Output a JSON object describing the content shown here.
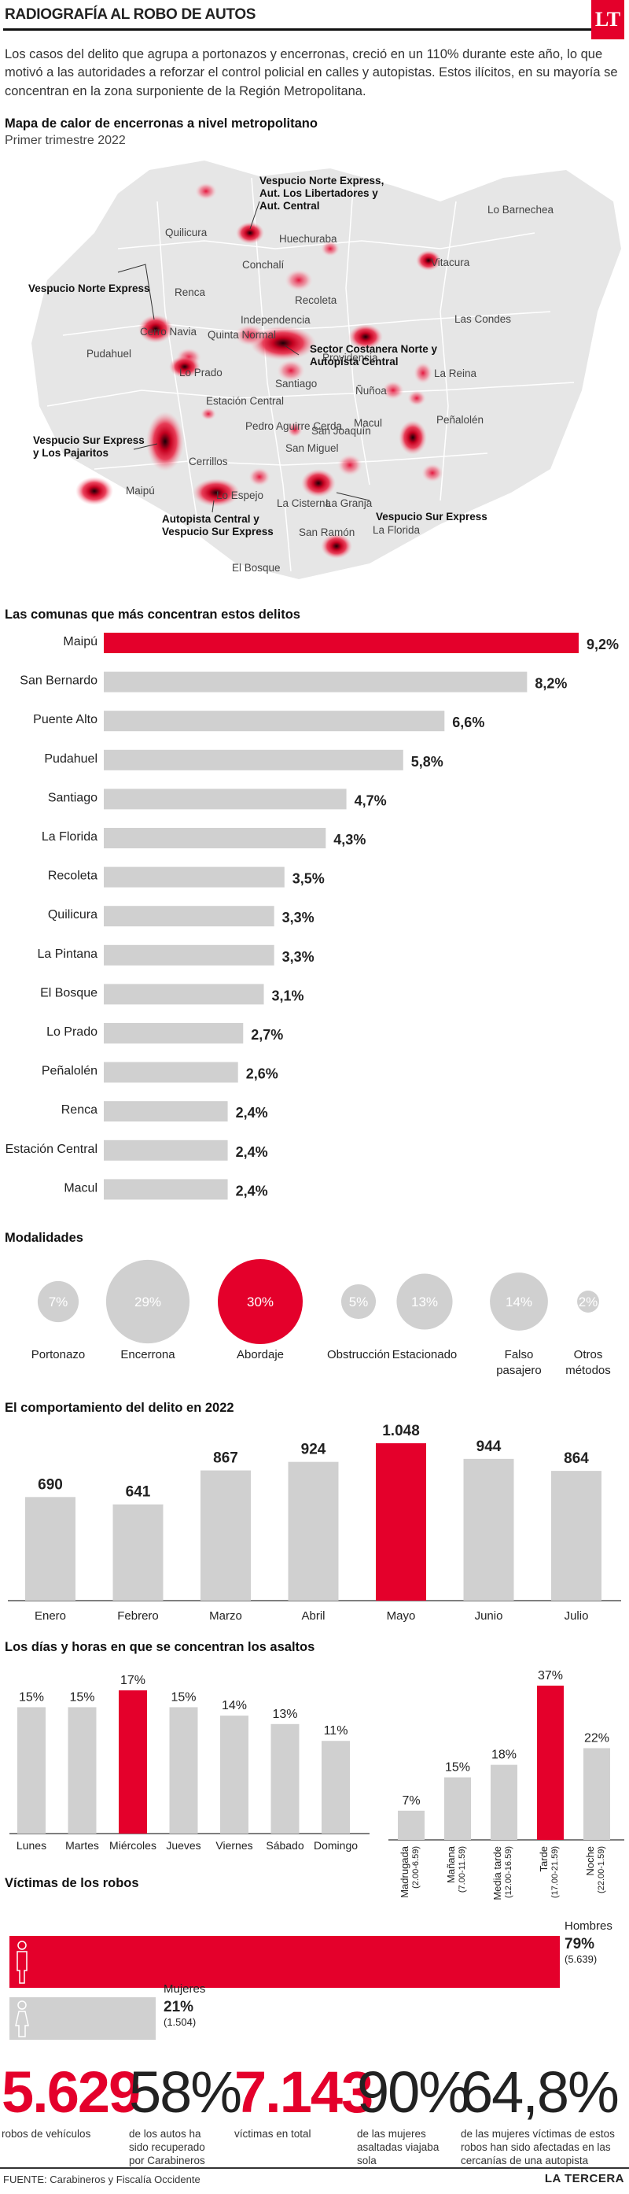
{
  "header": {
    "title": "RADIOGRAFÍA AL ROBO DE AUTOS",
    "logo": "LT"
  },
  "intro": "Los casos del delito que agrupa a portonazos y encerronas, creció en un 110% durante este año, lo que motivó a las autoridades a reforzar el control policial en calles y autopistas. Estos ilícitos, en su mayoría se concentran en la zona surponiente de la Región Metropolitana.",
  "map": {
    "title": "Mapa de calor de encerronas a nivel metropolitano",
    "subtitle": "Primer trimestre 2022",
    "communes": [
      "Lo Barnechea",
      "Quilicura",
      "Huechuraba",
      "Conchalí",
      "Vitacura",
      "Renca",
      "Recoleta",
      "Cerro Navia",
      "Independencia",
      "Las Condes",
      "Quinta Normal",
      "Providencia",
      "Pudahuel",
      "Lo Prado",
      "Santiago",
      "Ñuñoa",
      "La Reina",
      "Estación Central",
      "Macul",
      "Peñalolén",
      "Pedro Aguirre Cerda",
      "San Joaquín",
      "San Miguel",
      "Cerrillos",
      "Maipú",
      "Lo Espejo",
      "La Cisterna",
      "La Granja",
      "La Florida",
      "San Ramón",
      "El Bosque"
    ],
    "highways": [
      "Vespucio Norte Express, Aut. Los Libertadores y Aut. Central",
      "Vespucio Norte Express",
      "Sector Costanera Norte y Autopista Central",
      "Vespucio Sur Express y Los Pajaritos",
      "Autopista Central y Vespucio Sur Express",
      "Vespucio Sur Express"
    ]
  },
  "communes_chart": {
    "title": "Las comunas que más concentran estos delitos",
    "highlight_color": "#e4002b",
    "bar_color": "#d0d0d0"
  },
  "modalidades": {
    "title": "Modalidades"
  },
  "monthly": {
    "title": "El comportamiento del delito en 2022"
  },
  "days_hours": {
    "title": "Los días y horas en que se concentran los asaltos"
  },
  "victims": {
    "title": "Víctimas de los robos",
    "men_label": "Hombres",
    "men_pct": "79%",
    "men_count": "(5.639)",
    "women_label": "Mujeres",
    "women_pct": "21%",
    "women_count": "(1.504)"
  },
  "stats": [
    {
      "value": "5.629",
      "text": "robos de vehículos"
    },
    {
      "value": "58%",
      "text": "de los autos ha sido recuperado por Carabineros"
    },
    {
      "value": "7.143",
      "text": "víctimas en total"
    },
    {
      "value": "90%",
      "text": "de las mujeres asaltadas viajaba sola"
    },
    {
      "value": "64,8%",
      "text": "de las mujeres víctimas de estos robos han sido afectadas en las cercanías de una autopista"
    }
  ],
  "footer": {
    "source": "FUENTE: Carabineros y Fiscalía Occidente",
    "brand": "LA TERCERA"
  },
  "chart_data": [
    {
      "type": "bar",
      "orientation": "horizontal",
      "title": "Las comunas que más concentran estos delitos",
      "categories": [
        "Maipú",
        "San Bernardo",
        "Puente Alto",
        "Pudahuel",
        "Santiago",
        "La Florida",
        "Recoleta",
        "Quilicura",
        "La Pintana",
        "El Bosque",
        "Lo Prado",
        "Peñalolén",
        "Renca",
        "Estación Central",
        "Macul"
      ],
      "values": [
        9.2,
        8.2,
        6.6,
        5.8,
        4.7,
        4.3,
        3.5,
        3.3,
        3.3,
        3.1,
        2.7,
        2.6,
        2.4,
        2.4,
        2.4
      ],
      "labels": [
        "9,2%",
        "8,2%",
        "6,6%",
        "5,8%",
        "4,7%",
        "4,3%",
        "3,5%",
        "3,3%",
        "3,3%",
        "3,1%",
        "2,7%",
        "2,6%",
        "2,4%",
        "2,4%",
        "2,4%"
      ],
      "unit": "%"
    },
    {
      "type": "bubble",
      "title": "Modalidades",
      "categories": [
        "Portonazo",
        "Encerrona",
        "Abordaje",
        "Obstrucción",
        "Estacionado",
        "Falso pasajero",
        "Otros métodos"
      ],
      "values": [
        7,
        29,
        30,
        5,
        13,
        14,
        2
      ],
      "labels": [
        "7%",
        "29%",
        "30%",
        "5%",
        "13%",
        "14%",
        "2%"
      ],
      "highlight": "Abordaje"
    },
    {
      "type": "bar",
      "title": "El comportamiento del delito en 2022",
      "categories": [
        "Enero",
        "Febrero",
        "Marzo",
        "Abril",
        "Mayo",
        "Junio",
        "Julio"
      ],
      "values": [
        690,
        641,
        867,
        924,
        1048,
        944,
        864
      ],
      "labels": [
        "690",
        "641",
        "867",
        "924",
        "1.048",
        "944",
        "864"
      ],
      "highlight": "Mayo"
    },
    {
      "type": "bar",
      "title": "Los días y horas en que se concentran los asaltos",
      "categories": [
        "Lunes",
        "Martes",
        "Miércoles",
        "Jueves",
        "Viernes",
        "Sábado",
        "Domingo"
      ],
      "values": [
        15,
        15,
        17,
        15,
        14,
        13,
        11
      ],
      "labels": [
        "15%",
        "15%",
        "17%",
        "15%",
        "14%",
        "13%",
        "11%"
      ],
      "highlight": "Miércoles"
    },
    {
      "type": "bar",
      "categories": [
        "Madrugada (2.00-6.59)",
        "Mañana (7.00-11.59)",
        "Media tarde (12.00-16.59)",
        "Tarde (17.00-21.59)",
        "Noche (22.00-1.59)"
      ],
      "values": [
        7,
        15,
        18,
        37,
        22
      ],
      "labels": [
        "7%",
        "15%",
        "18%",
        "37%",
        "22%"
      ],
      "highlight": "Tarde (17.00-21.59)"
    },
    {
      "type": "bar",
      "orientation": "horizontal",
      "title": "Víctimas de los robos",
      "categories": [
        "Hombres",
        "Mujeres"
      ],
      "values": [
        79,
        21
      ],
      "counts": [
        5639,
        1504
      ]
    }
  ]
}
